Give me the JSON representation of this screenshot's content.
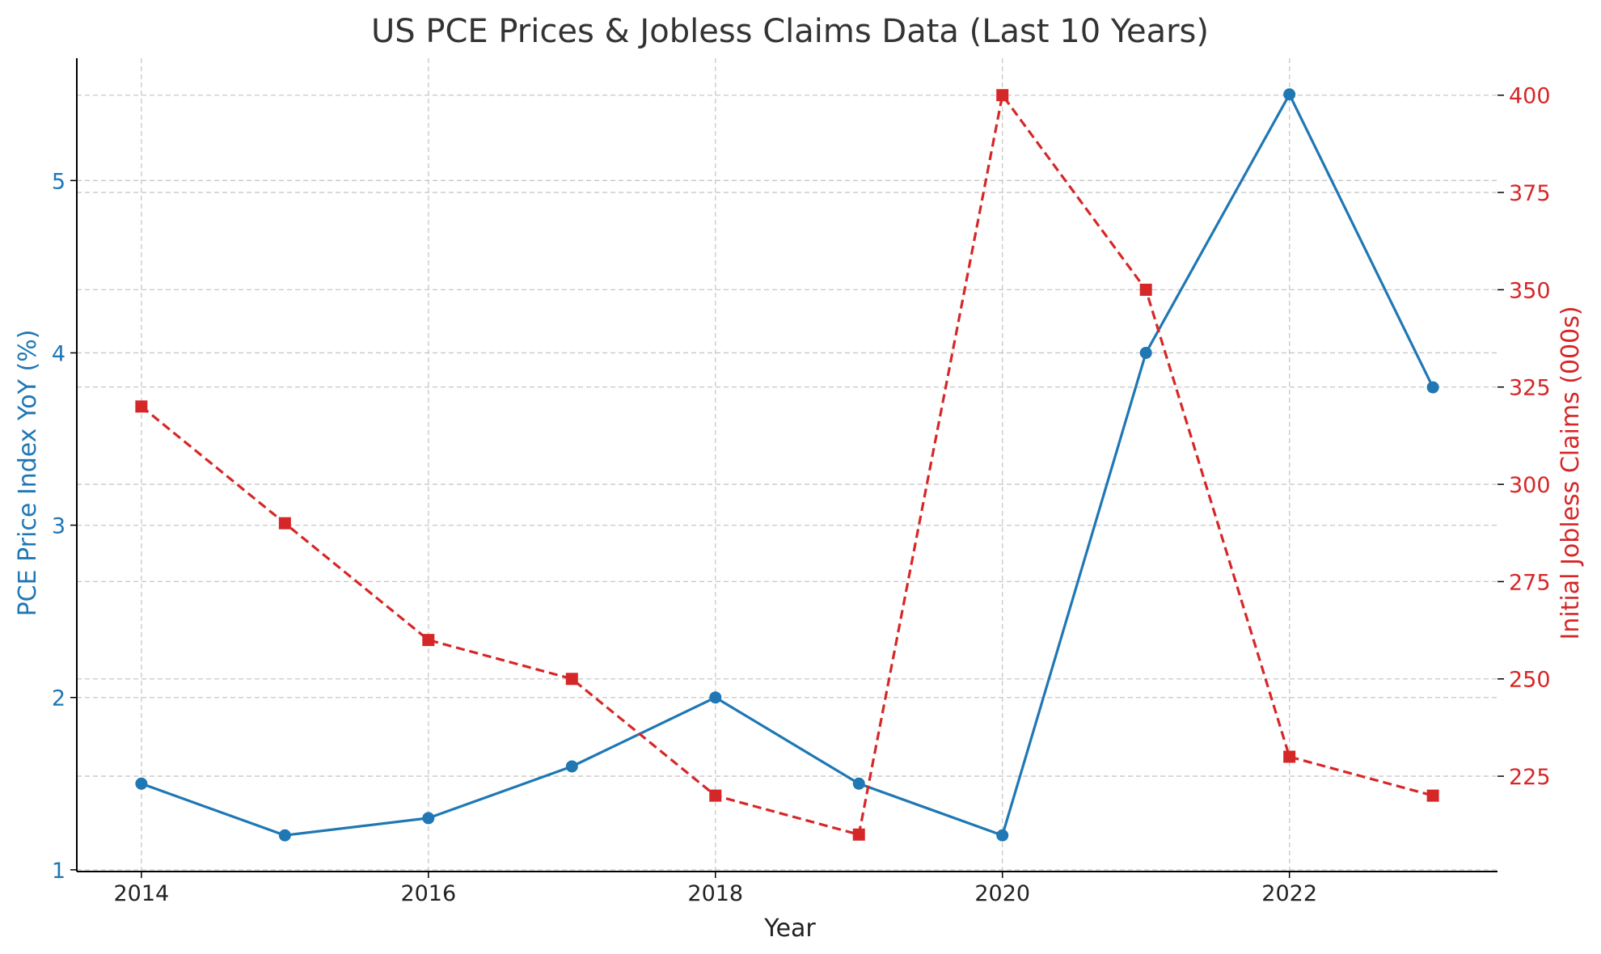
{
  "chart_data": {
    "type": "line",
    "title": "US PCE Prices & Jobless Claims Data (Last 10 Years)",
    "xlabel": "Year",
    "x": [
      2014,
      2015,
      2016,
      2017,
      2018,
      2019,
      2020,
      2021,
      2022,
      2023
    ],
    "x_ticks": [
      2014,
      2016,
      2018,
      2020,
      2022
    ],
    "xlim": [
      2013.55,
      2023.45
    ],
    "grid": true,
    "series": [
      {
        "axis": "left",
        "ylabel": "PCE Price Index YoY (%)",
        "values": [
          1.5,
          1.2,
          1.3,
          1.6,
          2.0,
          1.5,
          1.2,
          4.0,
          5.5,
          3.8
        ],
        "color": "#1f77b4",
        "marker": "circle",
        "line_style": "solid",
        "ylim": [
          0.99,
          5.71
        ],
        "ticks": [
          1,
          2,
          3,
          4,
          5
        ]
      },
      {
        "axis": "right",
        "ylabel": "Initial Jobless Claims (000s)",
        "values": [
          320,
          290,
          260,
          250,
          220,
          210,
          400,
          350,
          230,
          220
        ],
        "color": "#d62728",
        "marker": "square",
        "line_style": "dashed",
        "ylim": [
          200.5,
          409.5
        ],
        "ticks": [
          225,
          250,
          275,
          300,
          325,
          350,
          375,
          400
        ]
      }
    ]
  }
}
